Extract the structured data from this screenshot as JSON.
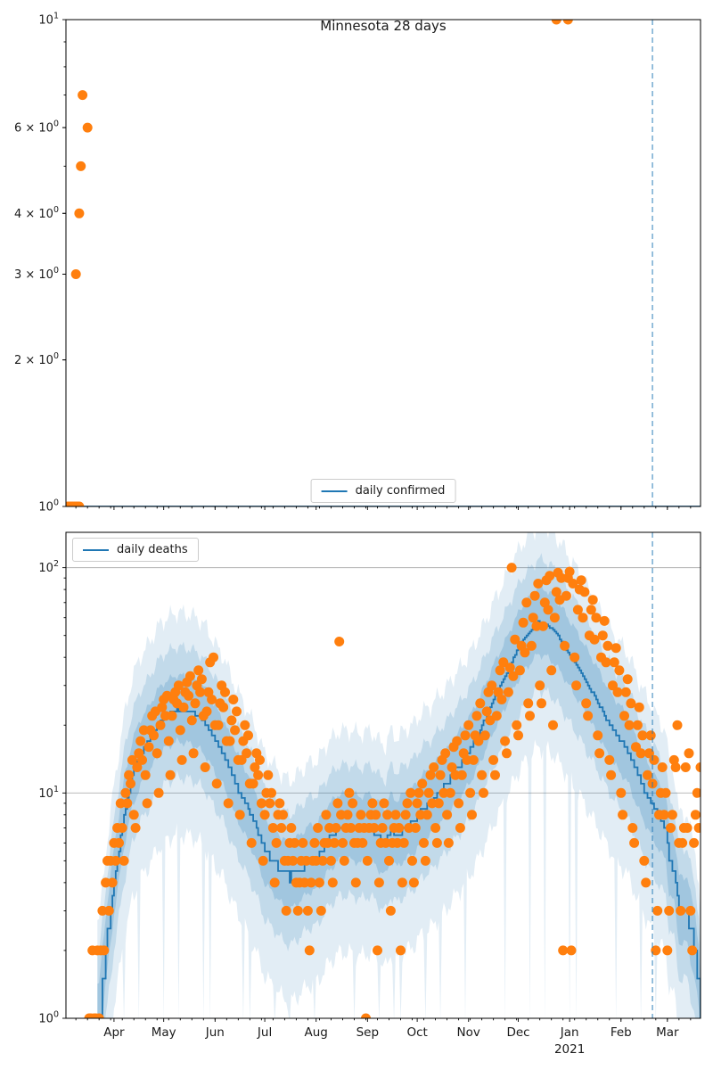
{
  "title": "Minnesota 28 days",
  "colors": {
    "scatter_orange": "#ff7f0e",
    "line_blue": "#1f77b4",
    "band_blue": "#1f77b4",
    "grid_gray": "#b0b0b0",
    "vline_dashed_blue": "rgba(31,119,180,0.55)",
    "spine_black": "#000000",
    "legend_border": "#cccccc"
  },
  "x_axis": {
    "total_days": 383,
    "vline_day": 354,
    "minor_tick_start_day": 6,
    "minor_tick_step_days": 7,
    "year_label": "2021",
    "months": [
      {
        "label": "Apr",
        "day": 29
      },
      {
        "label": "May",
        "day": 59
      },
      {
        "label": "Jun",
        "day": 90
      },
      {
        "label": "Jul",
        "day": 120
      },
      {
        "label": "Aug",
        "day": 151
      },
      {
        "label": "Sep",
        "day": 182
      },
      {
        "label": "Oct",
        "day": 212
      },
      {
        "label": "Nov",
        "day": 243
      },
      {
        "label": "Dec",
        "day": 273
      },
      {
        "label": "Jan",
        "day": 304,
        "year_label": "2021"
      },
      {
        "label": "Feb",
        "day": 335
      },
      {
        "label": "Mar",
        "day": 363
      }
    ]
  },
  "chart_data": [
    {
      "type": "line+scatter",
      "name": "daily-confirmed",
      "title": "Minnesota 28 days",
      "legend_label": "daily confirmed",
      "legend_position": "lower center",
      "ylog": true,
      "y_min": 1,
      "y_max": 10,
      "y_ticks": [
        {
          "v": 1,
          "base": "10",
          "sup": "0"
        },
        {
          "v": 2,
          "base": "2 × 10",
          "sup": "0"
        },
        {
          "v": 3,
          "base": "3 × 10",
          "sup": "0"
        },
        {
          "v": 4,
          "base": "4 × 10",
          "sup": "0"
        },
        {
          "v": 6,
          "base": "6 × 10",
          "sup": "0"
        },
        {
          "v": 10,
          "base": "10",
          "sup": "1"
        }
      ],
      "y_minor": [
        2,
        3,
        4,
        5,
        6,
        7,
        8,
        9
      ],
      "grid_values": [],
      "line_points": [
        [
          0,
          1
        ],
        [
          383,
          1
        ]
      ],
      "scatter_points": [
        [
          1,
          1
        ],
        [
          2,
          1
        ],
        [
          3,
          1
        ],
        [
          4,
          1
        ],
        [
          5,
          1
        ],
        [
          6,
          1
        ],
        [
          7,
          1
        ],
        [
          8,
          1
        ],
        [
          6,
          3
        ],
        [
          8,
          4
        ],
        [
          9,
          5
        ],
        [
          13,
          6
        ],
        [
          10,
          7
        ],
        [
          296,
          10
        ],
        [
          303,
          10
        ]
      ],
      "show_x_labels": false
    },
    {
      "type": "line+scatter+band",
      "name": "daily-deaths",
      "legend_label": "daily deaths",
      "legend_position": "upper left",
      "ylog": true,
      "y_min": 1,
      "y_max": 143.5,
      "y_ticks": [
        {
          "v": 1,
          "base": "10",
          "sup": "0"
        },
        {
          "v": 10,
          "base": "10",
          "sup": "1"
        },
        {
          "v": 100,
          "base": "10",
          "sup": "2"
        }
      ],
      "y_minor": [
        2,
        3,
        4,
        5,
        6,
        7,
        8,
        9,
        20,
        30,
        40,
        50,
        60,
        70,
        80,
        90
      ],
      "grid_values": [
        10,
        100
      ],
      "line_points": [
        [
          20,
          1
        ],
        [
          24,
          2
        ],
        [
          29,
          4
        ],
        [
          35,
          8
        ],
        [
          40,
          12
        ],
        [
          45,
          15
        ],
        [
          50,
          17
        ],
        [
          55,
          20
        ],
        [
          60,
          22
        ],
        [
          67,
          23.5
        ],
        [
          75,
          23
        ],
        [
          80,
          22
        ],
        [
          85,
          20
        ],
        [
          90,
          17
        ],
        [
          95,
          15
        ],
        [
          100,
          12
        ],
        [
          105,
          10
        ],
        [
          110,
          8.5
        ],
        [
          115,
          7
        ],
        [
          120,
          5.5
        ],
        [
          125,
          5
        ],
        [
          130,
          4.5
        ],
        [
          135,
          4.2
        ],
        [
          140,
          4.5
        ],
        [
          146,
          5
        ],
        [
          152,
          5.2
        ],
        [
          158,
          6.2
        ],
        [
          165,
          7
        ],
        [
          172,
          7
        ],
        [
          178,
          6.8
        ],
        [
          184,
          7
        ],
        [
          189,
          6.3
        ],
        [
          193,
          6
        ],
        [
          196,
          7
        ],
        [
          200,
          6.5
        ],
        [
          204,
          7
        ],
        [
          210,
          7.5
        ],
        [
          215,
          8.5
        ],
        [
          220,
          9
        ],
        [
          225,
          10
        ],
        [
          230,
          11
        ],
        [
          235,
          12.5
        ],
        [
          240,
          14
        ],
        [
          245,
          16
        ],
        [
          250,
          19
        ],
        [
          255,
          23
        ],
        [
          260,
          28
        ],
        [
          265,
          33
        ],
        [
          270,
          40
        ],
        [
          275,
          47
        ],
        [
          280,
          52
        ],
        [
          285,
          57.5
        ],
        [
          290,
          56
        ],
        [
          295,
          52
        ],
        [
          300,
          46
        ],
        [
          305,
          40
        ],
        [
          310,
          35
        ],
        [
          315,
          30
        ],
        [
          320,
          26
        ],
        [
          325,
          22
        ],
        [
          330,
          19
        ],
        [
          335,
          17
        ],
        [
          340,
          15
        ],
        [
          345,
          12
        ],
        [
          350,
          10
        ],
        [
          354,
          8.8
        ],
        [
          357,
          8
        ],
        [
          362,
          7
        ],
        [
          364,
          5
        ],
        [
          367,
          4.6
        ],
        [
          370,
          3
        ],
        [
          375,
          3
        ],
        [
          377,
          2.5
        ],
        [
          380,
          2
        ],
        [
          382,
          1.5
        ],
        [
          383,
          1
        ]
      ],
      "bands": {
        "outer": [
          0.28,
          2.7
        ],
        "middle": [
          0.5,
          1.9
        ],
        "inner": [
          0.72,
          1.42
        ]
      },
      "scatter_start_day": 14,
      "scatter_daily_values": [
        1,
        1,
        2,
        1,
        1,
        2,
        1,
        2,
        3,
        2,
        4,
        5,
        3,
        5,
        4,
        6,
        5,
        7,
        6,
        9,
        7,
        5,
        10,
        9,
        12,
        11,
        14,
        8,
        7,
        13,
        15,
        17,
        14,
        19,
        12,
        9,
        16,
        19,
        22,
        18,
        23,
        15,
        10,
        20,
        24,
        26,
        22,
        27,
        17,
        12,
        22,
        26,
        28,
        25,
        30,
        19,
        14,
        24,
        28,
        31,
        27,
        33,
        21,
        15,
        25,
        30,
        35,
        28,
        32,
        22,
        13,
        23,
        28,
        38,
        26,
        40,
        20,
        11,
        20,
        25,
        30,
        24,
        28,
        17,
        9,
        17,
        21,
        26,
        19,
        23,
        14,
        8,
        14,
        17,
        20,
        15,
        18,
        11,
        6,
        11,
        13,
        15,
        12,
        14,
        9,
        5,
        8,
        10,
        12,
        9,
        10,
        7,
        4,
        6,
        8,
        9,
        7,
        8,
        5,
        3,
        5,
        6,
        7,
        5,
        6,
        4,
        3,
        4,
        5,
        6,
        4,
        5,
        3,
        2,
        4,
        5,
        6,
        5,
        7,
        4,
        3,
        5,
        6,
        8,
        6,
        7,
        5,
        4,
        6,
        7,
        9,
        47,
        8,
        6,
        5,
        7,
        8,
        10,
        7,
        9,
        6,
        4,
        6,
        7,
        8,
        6,
        7,
        1,
        5,
        7,
        8,
        9,
        7,
        8,
        2,
        4,
        6,
        7,
        9,
        6,
        8,
        5,
        3,
        6,
        7,
        8,
        6,
        7,
        2,
        4,
        6,
        8,
        9,
        7,
        10,
        5,
        4,
        7,
        9,
        10,
        8,
        11,
        6,
        5,
        8,
        10,
        12,
        9,
        13,
        7,
        6,
        9,
        12,
        14,
        10,
        15,
        8,
        6,
        10,
        13,
        16,
        12,
        17,
        9,
        7,
        12,
        15,
        18,
        14,
        20,
        10,
        8,
        14,
        18,
        22,
        17,
        25,
        12,
        10,
        18,
        23,
        28,
        21,
        30,
        14,
        12,
        22,
        28,
        35,
        26,
        38,
        17,
        15,
        28,
        36,
        100,
        33,
        48,
        20,
        18,
        35,
        45,
        57,
        42,
        70,
        25,
        22,
        45,
        60,
        75,
        55,
        85,
        30,
        25,
        55,
        70,
        88,
        65,
        92,
        35,
        20,
        60,
        78,
        95,
        72,
        90,
        2,
        45,
        75,
        90,
        96,
        2,
        85,
        40,
        30,
        65,
        80,
        88,
        60,
        78,
        25,
        22,
        50,
        65,
        72,
        48,
        60,
        18,
        15,
        40,
        50,
        58,
        38,
        45,
        14,
        12,
        30,
        38,
        44,
        28,
        35,
        10,
        8,
        22,
        28,
        32,
        20,
        25,
        7,
        6,
        16,
        20,
        24,
        15,
        18,
        5,
        4,
        12,
        15,
        18,
        11,
        14,
        2,
        3,
        8,
        10,
        13,
        8,
        10,
        2,
        3,
        7,
        8,
        14,
        13,
        20,
        6,
        3,
        6,
        7,
        13,
        7,
        15,
        3,
        2,
        6,
        8,
        10,
        7,
        13
      ],
      "show_x_labels": true
    }
  ]
}
